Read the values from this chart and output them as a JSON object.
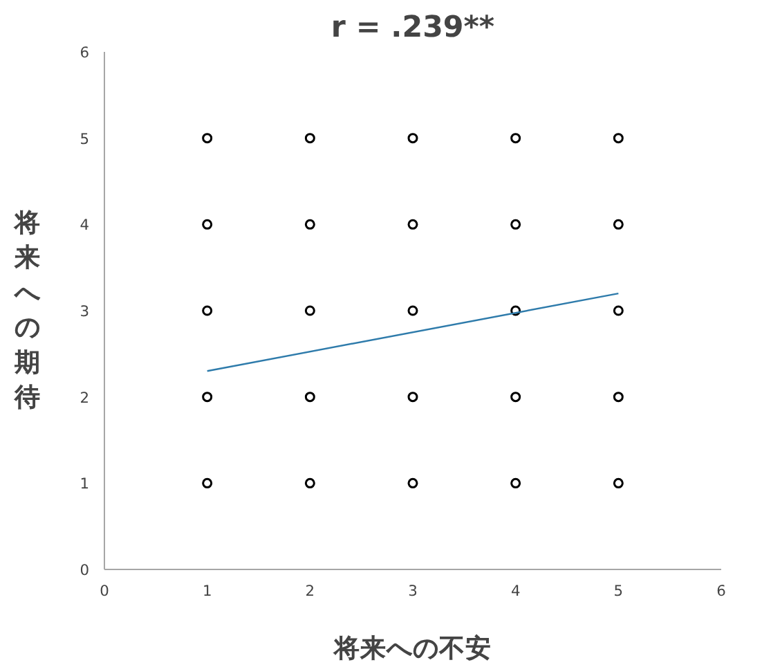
{
  "chart_data": {
    "type": "scatter",
    "title": "r = .239**",
    "xlabel": "将来への不安",
    "ylabel": "将来への期待",
    "xlim": [
      0,
      6
    ],
    "xticks": [
      0,
      1,
      2,
      3,
      4,
      5,
      6
    ],
    "ylim": [
      0,
      6
    ],
    "yticks": [
      0,
      1,
      2,
      3,
      4,
      5,
      6
    ],
    "grid": false,
    "series": [
      {
        "color": "#000000",
        "marker": "circle",
        "x": [
          1,
          1,
          1,
          1,
          1,
          2,
          2,
          2,
          2,
          2,
          3,
          3,
          3,
          3,
          3,
          4,
          4,
          4,
          4,
          4,
          5,
          5,
          5,
          5,
          5
        ],
        "values": [
          1,
          2,
          3,
          4,
          5,
          1,
          2,
          3,
          4,
          5,
          1,
          2,
          3,
          4,
          5,
          1,
          2,
          3,
          4,
          5,
          1,
          2,
          3,
          4,
          5
        ]
      },
      {
        "type": "line",
        "color": "#2e7bab",
        "x": [
          1,
          5
        ],
        "values": [
          2.3,
          3.2
        ]
      }
    ]
  }
}
